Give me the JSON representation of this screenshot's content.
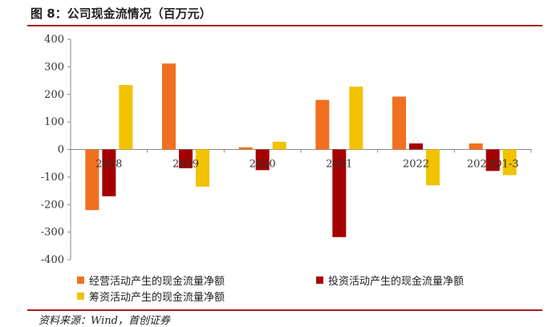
{
  "header": {
    "title": "图 8：公司现金流情况（百万元）"
  },
  "footer": {
    "source": "资料来源：Wind，首创证券"
  },
  "colors": {
    "rule": "#b0191e"
  },
  "chart_data": {
    "type": "bar",
    "title": "图 8：公司现金流情况（百万元）",
    "xlabel": "",
    "ylabel": "",
    "ylim": [
      -400,
      400
    ],
    "yticks": [
      400,
      300,
      200,
      100,
      0,
      -100,
      -200,
      -300,
      -400
    ],
    "categories": [
      "2018",
      "2019",
      "2020",
      "2021",
      "2022",
      "2023Q1-3"
    ],
    "grid": false,
    "legend_position": "bottom",
    "series": [
      {
        "name": "经营活动产生的现金流量净额",
        "color": "#f07020",
        "values": [
          -220,
          312,
          8,
          180,
          192,
          22
        ]
      },
      {
        "name": "投资活动产生的现金流量净额",
        "color": "#a50000",
        "values": [
          -170,
          -68,
          -75,
          -318,
          22,
          -78
        ]
      },
      {
        "name": "筹资活动产生的现金流量净额",
        "color": "#f2c200",
        "values": [
          234,
          -135,
          28,
          228,
          -130,
          -93
        ]
      }
    ]
  }
}
